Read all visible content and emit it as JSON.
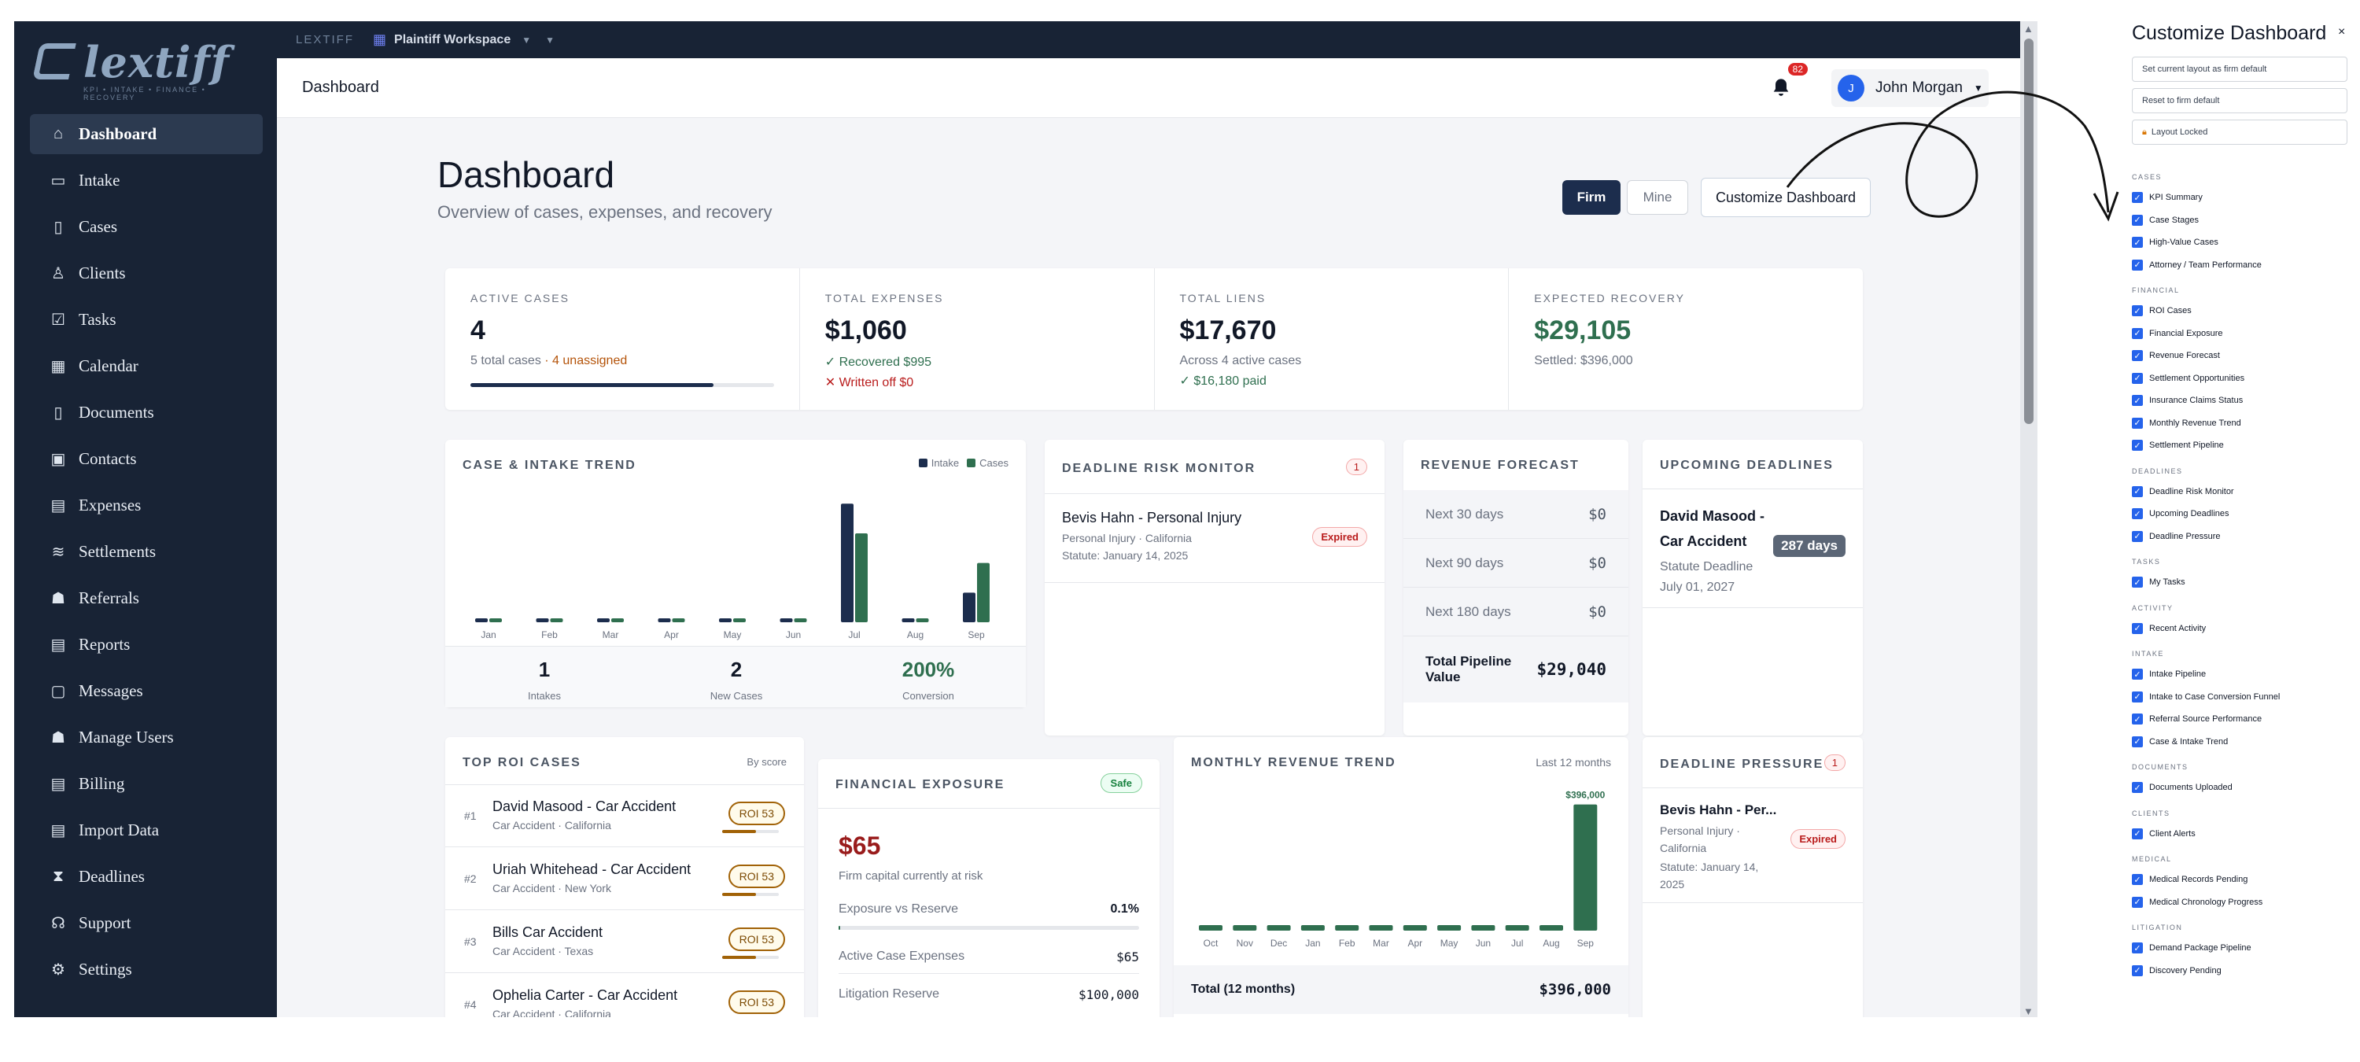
{
  "brand": {
    "logo": "lextiff",
    "tagline": "KPI • INTAKE • FINANCE • RECOVERY",
    "topbar_label": "LEXTIFF",
    "workspace": "Plaintiff Workspace"
  },
  "sidebar": {
    "items": [
      {
        "label": "Dashboard",
        "icon": "home-icon",
        "active": true
      },
      {
        "label": "Intake",
        "icon": "inbox-icon"
      },
      {
        "label": "Cases",
        "icon": "file-icon"
      },
      {
        "label": "Clients",
        "icon": "person-icon"
      },
      {
        "label": "Tasks",
        "icon": "checkbox-icon"
      },
      {
        "label": "Calendar",
        "icon": "calendar-icon"
      },
      {
        "label": "Documents",
        "icon": "document-icon"
      },
      {
        "label": "Contacts",
        "icon": "contact-card-icon"
      },
      {
        "label": "Expenses",
        "icon": "receipt-icon"
      },
      {
        "label": "Settlements",
        "icon": "handshake-icon"
      },
      {
        "label": "Referrals",
        "icon": "people-icon"
      },
      {
        "label": "Reports",
        "icon": "report-icon"
      },
      {
        "label": "Messages",
        "icon": "chat-icon"
      },
      {
        "label": "Manage Users",
        "icon": "users-icon"
      },
      {
        "label": "Billing",
        "icon": "invoice-icon"
      },
      {
        "label": "Import Data",
        "icon": "import-icon"
      },
      {
        "label": "Deadlines",
        "icon": "hourglass-icon"
      },
      {
        "label": "Support",
        "icon": "headset-icon"
      },
      {
        "label": "Settings",
        "icon": "gear-icon"
      }
    ]
  },
  "header": {
    "title": "Dashboard",
    "notifications": "82",
    "user_initial": "J",
    "user_name": "John Morgan"
  },
  "page": {
    "title": "Dashboard",
    "subtitle": "Overview of cases, expenses, and recovery",
    "toggle_firm": "Firm",
    "toggle_mine": "Mine",
    "customize_button": "Customize Dashboard"
  },
  "kpis": {
    "active": {
      "label": "ACTIVE CASES",
      "value": "4",
      "sub": "5 total cases",
      "sub2": "· 4 unassigned",
      "progress": 0.8
    },
    "expenses": {
      "label": "TOTAL EXPENSES",
      "value": "$1,060",
      "sub": "✓ Recovered $995",
      "sub2": "✕ Written off $0"
    },
    "liens": {
      "label": "TOTAL LIENS",
      "value": "$17,670",
      "sub": "Across 4 active cases",
      "sub2": "✓ $16,180 paid"
    },
    "recovery": {
      "label": "EXPECTED RECOVERY",
      "value": "$29,105",
      "sub": "Settled: $396,000"
    }
  },
  "trend": {
    "title": "CASE & INTAKE TREND",
    "legend": [
      "Intake",
      "Cases"
    ],
    "stats": [
      {
        "value": "1",
        "label": "Intakes"
      },
      {
        "value": "2",
        "label": "New Cases"
      },
      {
        "value": "200%",
        "label": "Conversion"
      }
    ]
  },
  "deadline_risk": {
    "title": "DEADLINE RISK MONITOR",
    "count": "1",
    "item": {
      "name": "Bevis Hahn - Personal Injury",
      "sub": "Personal Injury · California",
      "statute": "Statute: January 14, 2025",
      "status": "Expired"
    }
  },
  "revenue_forecast": {
    "title": "REVENUE FORECAST",
    "rows": [
      {
        "label": "Next 30 days",
        "value": "$0"
      },
      {
        "label": "Next 90 days",
        "value": "$0"
      },
      {
        "label": "Next 180 days",
        "value": "$0"
      }
    ],
    "total_label": "Total Pipeline Value",
    "total_value": "$29,040"
  },
  "upcoming": {
    "title": "UPCOMING DEADLINES",
    "item": {
      "name": "David Masood - Car Accident",
      "days": "287 days",
      "type": "Statute Deadline",
      "date": "July 01, 2027"
    }
  },
  "roi": {
    "title": "TOP ROI CASES",
    "sort": "By score",
    "items": [
      {
        "rank": "#1",
        "name": "David Masood - Car Accident",
        "sub": "Car Accident · California",
        "badge": "ROI 53"
      },
      {
        "rank": "#2",
        "name": "Uriah Whitehead - Car Accident",
        "sub": "Car Accident · New York",
        "badge": "ROI 53"
      },
      {
        "rank": "#3",
        "name": "Bills Car Accident",
        "sub": "Car Accident · Texas",
        "badge": "ROI 53"
      },
      {
        "rank": "#4",
        "name": "Ophelia Carter - Car Accident",
        "sub": "Car Accident · California",
        "badge": "ROI 53"
      }
    ]
  },
  "exposure": {
    "title": "FINANCIAL EXPOSURE",
    "status": "Safe",
    "value": "$65",
    "caption": "Firm capital currently at risk",
    "ratio_label": "Exposure vs Reserve",
    "ratio_value": "0.1%",
    "ratio": 0.001,
    "rows": [
      {
        "label": "Active Case Expenses",
        "value": "$65"
      },
      {
        "label": "Litigation Reserve",
        "value": "$100,000"
      }
    ]
  },
  "monthly": {
    "title": "MONTHLY REVENUE TREND",
    "range": "Last 12 months",
    "peak_label": "$396,000",
    "total_label": "Total (12 months)",
    "total_value": "$396,000"
  },
  "pressure": {
    "title": "DEADLINE PRESSURE",
    "count": "1",
    "item": {
      "name": "Bevis Hahn - Per...",
      "sub1": "Personal Injury ·",
      "sub2": "California",
      "statute1": "Statute: January 14,",
      "statute2": "2025",
      "status": "Expired"
    }
  },
  "panel": {
    "title": "Customize Dashboard",
    "close": "×",
    "buttons": [
      "Set current layout as firm default",
      "Reset to firm default",
      "Layout Locked"
    ],
    "sections": [
      {
        "name": "CASES",
        "items": [
          "KPI Summary",
          "Case Stages",
          "High-Value Cases",
          "Attorney / Team Performance"
        ]
      },
      {
        "name": "FINANCIAL",
        "items": [
          "ROI Cases",
          "Financial Exposure",
          "Revenue Forecast",
          "Settlement Opportunities",
          "Insurance Claims Status",
          "Monthly Revenue Trend",
          "Settlement Pipeline"
        ]
      },
      {
        "name": "DEADLINES",
        "items": [
          "Deadline Risk Monitor",
          "Upcoming Deadlines",
          "Deadline Pressure"
        ]
      },
      {
        "name": "TASKS",
        "items": [
          "My Tasks"
        ]
      },
      {
        "name": "ACTIVITY",
        "items": [
          "Recent Activity"
        ]
      },
      {
        "name": "INTAKE",
        "items": [
          "Intake Pipeline",
          "Intake to Case Conversion Funnel",
          "Referral Source Performance",
          "Case & Intake Trend"
        ]
      },
      {
        "name": "DOCUMENTS",
        "items": [
          "Documents Uploaded"
        ]
      },
      {
        "name": "CLIENTS",
        "items": [
          "Client Alerts"
        ]
      },
      {
        "name": "MEDICAL",
        "items": [
          "Medical Records Pending",
          "Medical Chronology Progress"
        ]
      },
      {
        "name": "LITIGATION",
        "items": [
          "Demand Package Pipeline",
          "Discovery Pending"
        ]
      }
    ]
  },
  "colors": {
    "navy": "#1c2d4d",
    "green": "#2f6f4f",
    "sidebar": "#182335"
  },
  "chart_data": [
    {
      "type": "bar",
      "title": "CASE & INTAKE TREND",
      "categories": [
        "Jan",
        "Feb",
        "Mar",
        "Apr",
        "May",
        "Jun",
        "Jul",
        "Aug",
        "Sep"
      ],
      "series": [
        {
          "name": "Intake",
          "values": [
            0,
            0,
            0,
            0,
            0,
            0,
            4,
            0,
            1
          ]
        },
        {
          "name": "Cases",
          "values": [
            0,
            0,
            0,
            0,
            0,
            0,
            3,
            0,
            2
          ]
        }
      ],
      "ylim": [
        0,
        4.3
      ]
    },
    {
      "type": "bar",
      "title": "MONTHLY REVENUE TREND",
      "categories": [
        "Oct",
        "Nov",
        "Dec",
        "Jan",
        "Feb",
        "Mar",
        "Apr",
        "May",
        "Jun",
        "Jul",
        "Aug",
        "Sep"
      ],
      "values": [
        0,
        0,
        0,
        0,
        0,
        0,
        0,
        0,
        0,
        0,
        0,
        396000
      ],
      "ylim": [
        0,
        410000
      ]
    }
  ]
}
